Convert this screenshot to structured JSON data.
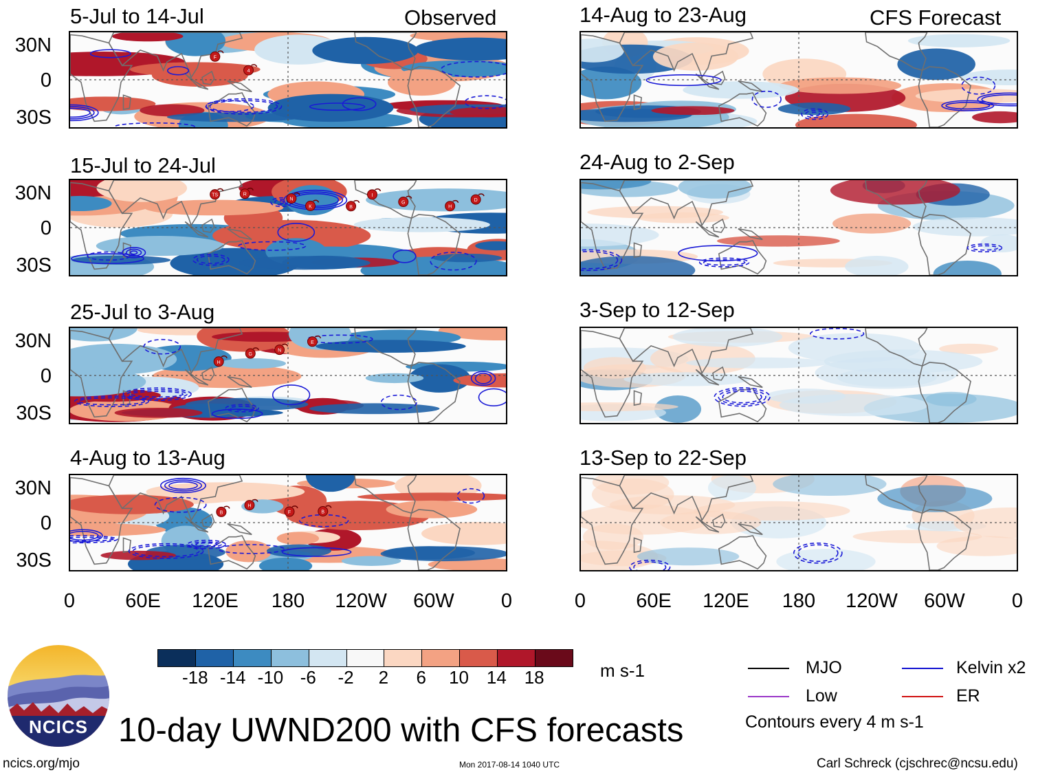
{
  "panels": [
    {
      "title": "5-Jul to 14-Jul",
      "tag": "Observed",
      "storms": [
        "F",
        "4"
      ]
    },
    {
      "title": "15-Jul to 24-Jul",
      "tag": "",
      "storms": [
        "TS",
        "R",
        "N",
        "K",
        "B",
        "I",
        "G",
        "H",
        "D"
      ]
    },
    {
      "title": "25-Jul to 3-Aug",
      "tag": "",
      "storms": [
        "H",
        "G",
        "N",
        "E"
      ]
    },
    {
      "title": "4-Aug to 13-Aug",
      "tag": "",
      "storms": [
        "B",
        "H",
        "F",
        "B"
      ]
    },
    {
      "title": "14-Aug to 23-Aug",
      "tag": "CFS Forecast",
      "storms": []
    },
    {
      "title": "24-Aug to 2-Sep",
      "tag": "",
      "storms": []
    },
    {
      "title": "3-Sep to 12-Sep",
      "tag": "",
      "storms": []
    },
    {
      "title": "13-Sep to 22-Sep",
      "tag": "",
      "storms": []
    }
  ],
  "lat_labels": [
    "30N",
    "0",
    "30S"
  ],
  "lon_labels": [
    "0",
    "60E",
    "120E",
    "180",
    "120W",
    "60W",
    "0"
  ],
  "colorbar": {
    "ticks": [
      "-18",
      "-14",
      "-10",
      "-6",
      "-2",
      "2",
      "6",
      "10",
      "14",
      "18"
    ],
    "colors": [
      "#0b2f5b",
      "#1f62a7",
      "#3d8bc1",
      "#8dbfdd",
      "#d3e6f2",
      "#f8f8f8",
      "#fbd7c2",
      "#f3a283",
      "#d95a4a",
      "#b0172a",
      "#6a0a1a"
    ],
    "units": "m s-1"
  },
  "legend": {
    "items": [
      {
        "label": "MJO",
        "color": "#000000"
      },
      {
        "label": "Kelvin x2",
        "color": "#1010d0"
      },
      {
        "label": "Low",
        "color": "#9a36c8"
      },
      {
        "label": "ER",
        "color": "#d01010"
      }
    ],
    "note": "Contours every 4 m s-1"
  },
  "logo_text": "NCICS",
  "main_title": "10-day UWND200 with CFS forecasts",
  "footer": {
    "left": "ncics.org/mjo",
    "center": "Mon 2017-08-14 1040 UTC",
    "right": "Carl Schreck (cjschrec@ncsu.edu)"
  }
}
